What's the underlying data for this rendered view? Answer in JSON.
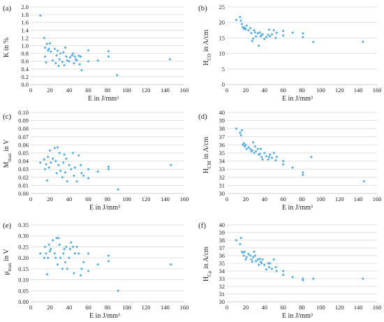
{
  "colors": {
    "marker": "#5aaee0",
    "grid": "#d9d9d9",
    "text": "#222222"
  },
  "chart_data": [
    {
      "type": "scatter",
      "panel_label": "(a)",
      "xlabel": "E in J/mm³",
      "ylabel": "K in %",
      "xlim": [
        0,
        160
      ],
      "ylim": [
        0,
        2.0
      ],
      "ystep": 0.2,
      "ydecimals": 1,
      "xticks": [
        "0",
        "20",
        "40",
        "60",
        "80",
        "100",
        "120",
        "140",
        "160"
      ],
      "yticks": [
        "0.0",
        "0.2",
        "0.4",
        "0.6",
        "0.8",
        "1.0",
        "1.2",
        "1.4",
        "1.6",
        "1.8",
        "2.0"
      ],
      "grid": true,
      "x": [
        10,
        14,
        15,
        15,
        16,
        17,
        18,
        19,
        20,
        21,
        23,
        25,
        26,
        27,
        28,
        29,
        30,
        31,
        33,
        34,
        35,
        36,
        37,
        38,
        40,
        41,
        43,
        44,
        45,
        46,
        47,
        48,
        50,
        51,
        52,
        53,
        60,
        60,
        70,
        81,
        81,
        90,
        145
      ],
      "y": [
        1.78,
        1.2,
        0.95,
        0.72,
        0.57,
        1.05,
        0.88,
        0.92,
        1.06,
        0.85,
        0.62,
        0.92,
        0.55,
        0.75,
        0.87,
        0.48,
        0.65,
        0.8,
        0.58,
        0.83,
        0.5,
        0.95,
        0.72,
        0.62,
        0.6,
        0.7,
        0.75,
        0.8,
        0.55,
        0.72,
        0.65,
        0.62,
        0.74,
        0.52,
        0.72,
        0.37,
        0.88,
        0.6,
        0.62,
        0.86,
        0.72,
        0.24,
        0.65
      ]
    },
    {
      "type": "scatter",
      "panel_label": "(b)",
      "xlabel": "E in J/mm³",
      "ylabel_main": "H",
      "ylabel_sub": "CO",
      "ylabel_rest": " in A/cm",
      "xlim": [
        0,
        160
      ],
      "ylim": [
        0,
        25
      ],
      "ystep": 5,
      "ydecimals": 0,
      "xticks": [
        "0",
        "20",
        "40",
        "60",
        "80",
        "100",
        "120",
        "140",
        "160"
      ],
      "yticks": [
        "0",
        "5",
        "10",
        "15",
        "20",
        "25"
      ],
      "grid": true,
      "x": [
        10,
        14,
        15,
        16,
        17,
        18,
        19,
        20,
        21,
        23,
        25,
        26,
        27,
        28,
        29,
        30,
        31,
        33,
        34,
        35,
        36,
        37,
        38,
        40,
        42,
        44,
        45,
        46,
        48,
        50,
        52,
        53,
        60,
        60,
        70,
        81,
        81,
        92,
        145
      ],
      "y": [
        20.8,
        21.8,
        20.6,
        19.5,
        18.5,
        18,
        18.3,
        17.8,
        19,
        17.5,
        18.2,
        16.6,
        14,
        14.8,
        17.5,
        16.8,
        15.5,
        16.5,
        12.5,
        16.8,
        15.5,
        16,
        16.2,
        14.7,
        15.3,
        16,
        17.7,
        15.5,
        16.2,
        17.5,
        15,
        16.7,
        15.8,
        17.3,
        16.7,
        16.5,
        15.3,
        13.7,
        13.8
      ]
    },
    {
      "type": "scatter",
      "panel_label": "(c)",
      "xlabel": "E in J/mm³",
      "ylabel_main": "M",
      "ylabel_sub": "max",
      "ylabel_rest": " in V",
      "xlim": [
        0,
        160
      ],
      "ylim": [
        0,
        0.1
      ],
      "ystep": 0.01,
      "ydecimals": 2,
      "xticks": [
        "0",
        "20",
        "40",
        "60",
        "80",
        "100",
        "120",
        "140",
        "160"
      ],
      "yticks": [
        "0.00",
        "0.01",
        "0.02",
        "0.03",
        "0.04",
        "0.05",
        "0.06",
        "0.07",
        "0.08",
        "0.09",
        "0.10"
      ],
      "grid": true,
      "x": [
        10,
        14,
        15,
        16,
        17,
        18,
        19,
        20,
        21,
        23,
        25,
        26,
        27,
        28,
        29,
        30,
        31,
        33,
        34,
        35,
        36,
        37,
        38,
        40,
        42,
        44,
        45,
        46,
        48,
        50,
        52,
        53,
        55,
        60,
        60,
        70,
        81,
        81,
        91,
        146
      ],
      "y": [
        0.038,
        0.042,
        0.03,
        0.036,
        0.016,
        0.045,
        0.032,
        0.053,
        0.038,
        0.043,
        0.056,
        0.04,
        0.025,
        0.057,
        0.035,
        0.05,
        0.028,
        0.02,
        0.038,
        0.048,
        0.026,
        0.043,
        0.015,
        0.035,
        0.03,
        0.05,
        0.022,
        0.032,
        0.015,
        0.047,
        0.035,
        0.025,
        0.022,
        0.03,
        0.019,
        0.027,
        0.03,
        0.033,
        0.005,
        0.035
      ]
    },
    {
      "type": "scatter",
      "panel_label": "(d)",
      "xlabel": "E in J/mm³",
      "ylabel_main": "H",
      "ylabel_sub": "CM",
      "ylabel_rest": " in A/cm",
      "xlim": [
        0,
        160
      ],
      "ylim": [
        30,
        40
      ],
      "ystep": 1,
      "ydecimals": 0,
      "xticks": [
        "0",
        "20",
        "40",
        "60",
        "80",
        "100",
        "120",
        "140",
        "160"
      ],
      "yticks": [
        "30",
        "31",
        "32",
        "33",
        "34",
        "35",
        "36",
        "37",
        "38",
        "39",
        "40"
      ],
      "grid": true,
      "x": [
        10,
        14,
        15,
        16,
        17,
        18,
        19,
        20,
        21,
        23,
        25,
        26,
        27,
        28,
        29,
        30,
        31,
        33,
        34,
        35,
        36,
        37,
        38,
        40,
        42,
        44,
        45,
        46,
        48,
        50,
        52,
        53,
        60,
        60,
        70,
        81,
        81,
        90,
        146
      ],
      "y": [
        38,
        37.5,
        37.2,
        37.8,
        36,
        36.2,
        35.8,
        36,
        35.5,
        35.7,
        35.5,
        35.2,
        35.3,
        36.3,
        35,
        35.8,
        35.2,
        35.5,
        34.8,
        34.9,
        35.5,
        34.5,
        34.2,
        35,
        34.6,
        34.2,
        34.5,
        34.8,
        34.4,
        35,
        34.1,
        34.5,
        34,
        33.6,
        33.2,
        32.6,
        32.3,
        34.5,
        31.5
      ]
    },
    {
      "type": "scatter",
      "panel_label": "(e)",
      "xlabel": "E in J/mm³",
      "ylabel_main": "μ",
      "ylabel_sub": "max",
      "ylabel_rest": " in V",
      "xlim": [
        0,
        160
      ],
      "ylim": [
        0,
        0.35
      ],
      "ystep": 0.05,
      "ydecimals": 2,
      "xticks": [
        "0",
        "20",
        "40",
        "60",
        "80",
        "100",
        "120",
        "140",
        "160"
      ],
      "yticks": [
        "0.00",
        "0.05",
        "0.10",
        "0.15",
        "0.20",
        "0.25",
        "0.30",
        "0.35"
      ],
      "grid": true,
      "x": [
        10,
        14,
        15,
        16,
        17,
        18,
        19,
        20,
        21,
        23,
        25,
        26,
        27,
        28,
        29,
        30,
        31,
        33,
        34,
        35,
        36,
        37,
        38,
        40,
        41,
        42,
        44,
        45,
        46,
        48,
        50,
        52,
        53,
        55,
        60,
        60,
        70,
        81,
        81,
        91,
        146
      ],
      "y": [
        0.22,
        0.2,
        0.25,
        0.22,
        0.125,
        0.2,
        0.26,
        0.23,
        0.24,
        0.28,
        0.22,
        0.2,
        0.29,
        0.17,
        0.29,
        0.26,
        0.2,
        0.15,
        0.22,
        0.24,
        0.18,
        0.25,
        0.15,
        0.2,
        0.24,
        0.27,
        0.25,
        0.13,
        0.22,
        0.25,
        0.22,
        0.12,
        0.15,
        0.18,
        0.22,
        0.14,
        0.17,
        0.21,
        0.185,
        0.05,
        0.17
      ]
    },
    {
      "type": "scatter",
      "panel_label": "(f)",
      "xlabel": "E in J/mm³",
      "ylabel_main": "H",
      "ylabel_sub": "Cμ",
      "ylabel_rest": " in A/cm",
      "xlim": [
        0,
        160
      ],
      "ylim": [
        30,
        40
      ],
      "ystep": 1,
      "ydecimals": 0,
      "xticks": [
        "0",
        "20",
        "40",
        "60",
        "80",
        "100",
        "120",
        "140",
        "160"
      ],
      "yticks": [
        "30",
        "31",
        "32",
        "33",
        "34",
        "35",
        "36",
        "37",
        "38",
        "39",
        "40"
      ],
      "grid": true,
      "x": [
        10,
        14,
        15,
        16,
        17,
        18,
        19,
        20,
        21,
        23,
        25,
        26,
        27,
        28,
        29,
        30,
        31,
        33,
        34,
        35,
        36,
        37,
        38,
        40,
        42,
        44,
        45,
        46,
        48,
        50,
        52,
        53,
        60,
        60,
        70,
        81,
        81,
        92,
        145
      ],
      "y": [
        38,
        37.5,
        38.3,
        36.5,
        36.4,
        36,
        36.5,
        35.5,
        35.8,
        36.2,
        36,
        35.5,
        35.2,
        35.8,
        36.5,
        36,
        35.3,
        35.5,
        34.8,
        35.6,
        35.2,
        35,
        35.5,
        34.8,
        34.2,
        35,
        34.5,
        35,
        34.3,
        35.5,
        34.5,
        34,
        34,
        33.5,
        33.2,
        33,
        32.8,
        33,
        33
      ]
    }
  ]
}
